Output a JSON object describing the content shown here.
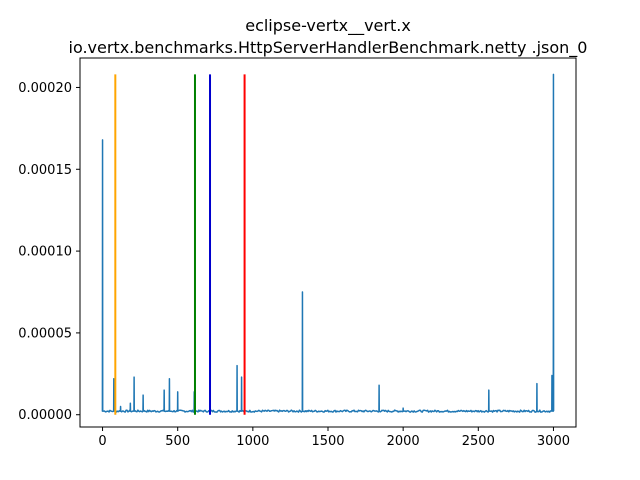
{
  "chart_data": {
    "type": "line",
    "title": "eclipse-vertx__vert.x",
    "subtitle": "io.vertx.benchmarks.HttpServerHandlerBenchmark.netty .json_0",
    "xlabel": "",
    "ylabel": "",
    "xlim": [
      -150,
      3150
    ],
    "ylim": [
      -7.5e-06,
      0.000218
    ],
    "xticks": [
      0,
      500,
      1000,
      1500,
      2000,
      2500,
      3000
    ],
    "xtick_labels": [
      "0",
      "500",
      "1000",
      "1500",
      "2000",
      "2500",
      "3000"
    ],
    "yticks": [
      0.0,
      5e-05,
      0.0001,
      0.00015,
      0.0002
    ],
    "ytick_labels": [
      "0.00000",
      "0.00005",
      "0.00010",
      "0.00015",
      "0.00020"
    ],
    "grid": false,
    "legend": "none",
    "series": [
      {
        "color": "#1f77b4",
        "baseline": 2.2e-06,
        "start_value": 2.8e-06,
        "spikes": [
          {
            "x": 0,
            "y": 0.000168
          },
          {
            "x": 75,
            "y": 2.2e-05
          },
          {
            "x": 120,
            "y": 5e-06
          },
          {
            "x": 185,
            "y": 7e-06
          },
          {
            "x": 210,
            "y": 2.3e-05
          },
          {
            "x": 270,
            "y": 1.2e-05
          },
          {
            "x": 410,
            "y": 1.5e-05
          },
          {
            "x": 445,
            "y": 2.2e-05
          },
          {
            "x": 500,
            "y": 1.4e-05
          },
          {
            "x": 610,
            "y": 1.4e-05
          },
          {
            "x": 895,
            "y": 3e-05
          },
          {
            "x": 925,
            "y": 2.3e-05
          },
          {
            "x": 1330,
            "y": 7.5e-05
          },
          {
            "x": 1840,
            "y": 1.8e-05
          },
          {
            "x": 2000,
            "y": 4e-06
          },
          {
            "x": 2570,
            "y": 1.5e-05
          },
          {
            "x": 2890,
            "y": 1.9e-05
          },
          {
            "x": 2990,
            "y": 2.4e-05
          },
          {
            "x": 3000,
            "y": 0.000208
          }
        ],
        "x_end": 3000
      }
    ],
    "vertical_lines": [
      {
        "x": 85,
        "color": "#ffa500",
        "y_top": 0.000208
      },
      {
        "x": 615,
        "color": "#008000",
        "y_top": 0.000208
      },
      {
        "x": 715,
        "color": "#0000cd",
        "y_top": 0.000208
      },
      {
        "x": 945,
        "color": "#ff0000",
        "y_top": 0.000208
      }
    ]
  }
}
